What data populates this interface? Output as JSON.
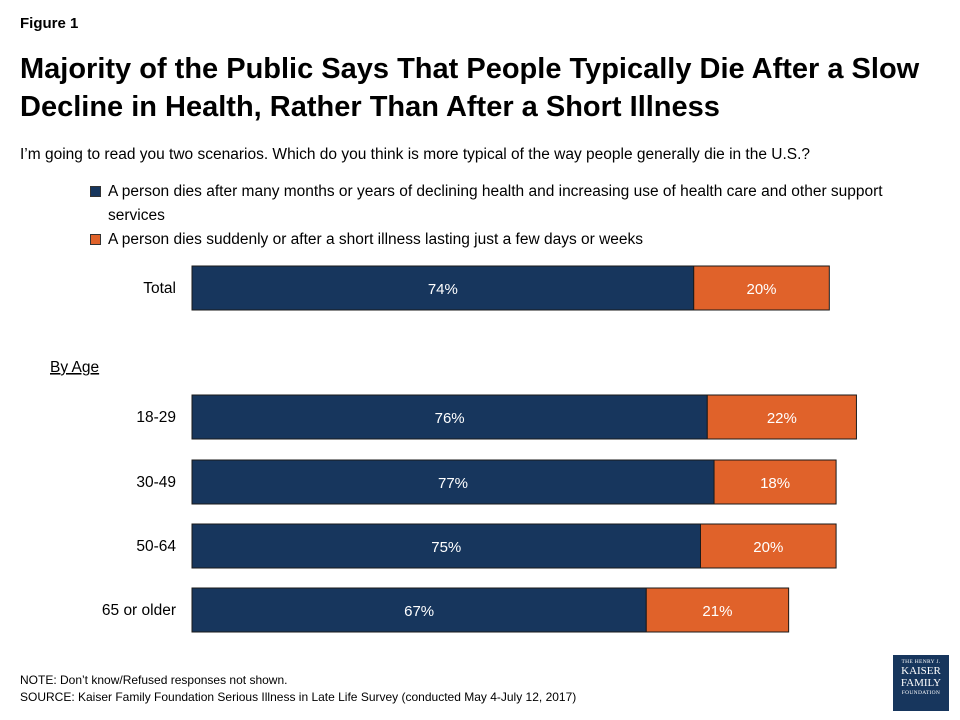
{
  "figure_label": "Figure 1",
  "title": "Majority of the Public Says That People Typically Die After a Slow Decline in Health, Rather Than After a Short Illness",
  "subtitle": "I’m going to read you two scenarios. Which do you think is more typical of the way people generally die in the U.S.?",
  "colors": {
    "decline": "#17365d",
    "sudden": "#e0622a"
  },
  "chart_data": {
    "type": "bar",
    "orientation": "horizontal",
    "stacked": true,
    "categories": [
      "Total",
      "18-29",
      "30-49",
      "50-64",
      "65 or older"
    ],
    "section_label": "By Age",
    "series": [
      {
        "name": "A person dies after many months or years of declining health and increasing use of health care and other support services",
        "values": [
          74,
          76,
          77,
          75,
          67
        ],
        "labels": [
          "74%",
          "76%",
          "77%",
          "75%",
          "67%"
        ]
      },
      {
        "name": "A person dies suddenly or after a short illness lasting just a few days or weeks",
        "values": [
          20,
          22,
          18,
          20,
          21
        ],
        "labels": [
          "20%",
          "22%",
          "18%",
          "20%",
          "21%"
        ]
      }
    ],
    "legend_position": "top",
    "grid": false
  },
  "notes": {
    "note": "NOTE: Don’t know/Refused responses not shown.",
    "source": "SOURCE: Kaiser Family Foundation Serious Illness in Late Life Survey (conducted May 4-July 12, 2017)"
  },
  "logo": {
    "line1": "THE HENRY J.",
    "line2": "KAISER",
    "line3": "FAMILY",
    "line4": "FOUNDATION"
  }
}
